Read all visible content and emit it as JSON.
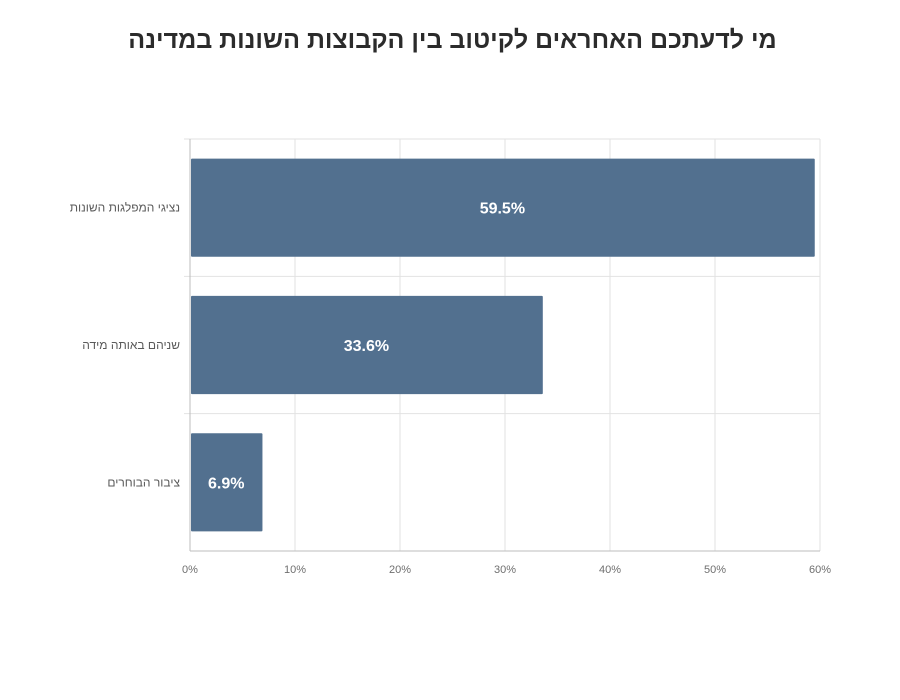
{
  "chart_data": {
    "type": "bar",
    "orientation": "horizontal",
    "title": "מי לדעתכם האחראים לקיטוב בין הקבוצות השונות במדינה",
    "categories": [
      "נציגי המפלגות השונות",
      "שניהם באותה מידה",
      "ציבור הבוחרים"
    ],
    "values": [
      59.5,
      33.6,
      6.9
    ],
    "data_labels": [
      "59.5%",
      "33.6%",
      "6.9%"
    ],
    "xlim": [
      0,
      60
    ],
    "x_ticks": [
      "0%",
      "10%",
      "20%",
      "30%",
      "40%",
      "50%",
      "60%"
    ],
    "grid": true,
    "legend": "none",
    "colors": {
      "bar": "#52708f",
      "grid": "#e2e2e2",
      "axis": "#bdbdbd"
    }
  }
}
